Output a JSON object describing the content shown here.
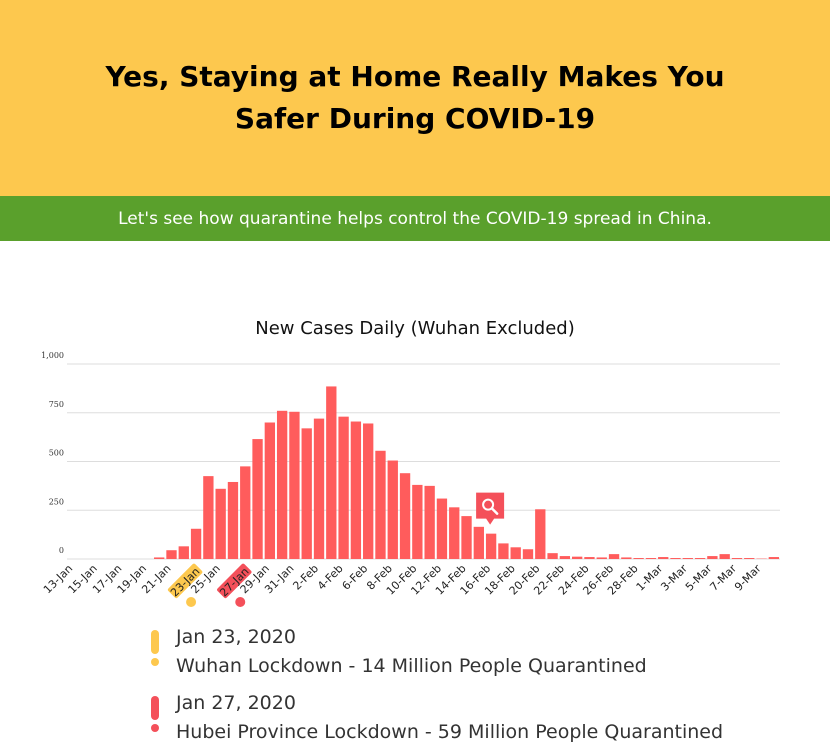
{
  "header": {
    "title": "Yes, Staying at Home Really Makes You Safer During COVID-19"
  },
  "subheader": {
    "text": "Let's see how quarantine helps control the COVID-19 spread in China."
  },
  "colors": {
    "header_bg": "#fdc84e",
    "subbar_bg": "#5aa02c",
    "bar": "#ff5c5c",
    "wuhan_marker": "#fdc84e",
    "hubei_marker": "#f4505a"
  },
  "chart_data": {
    "type": "bar",
    "title": "New Cases Daily (Wuhan Excluded)",
    "xlabel": "",
    "ylabel": "",
    "ylim": [
      0,
      1000
    ],
    "yticks": [
      0,
      250,
      500,
      750,
      1000
    ],
    "ytick_labels": [
      "0",
      "250",
      "500",
      "750",
      "1,000"
    ],
    "grid": true,
    "categories": [
      "13-Jan",
      "14-Jan",
      "15-Jan",
      "16-Jan",
      "17-Jan",
      "18-Jan",
      "19-Jan",
      "20-Jan",
      "21-Jan",
      "22-Jan",
      "23-Jan",
      "24-Jan",
      "25-Jan",
      "26-Jan",
      "27-Jan",
      "28-Jan",
      "29-Jan",
      "30-Jan",
      "31-Jan",
      "1-Feb",
      "2-Feb",
      "3-Feb",
      "4-Feb",
      "5-Feb",
      "6-Feb",
      "7-Feb",
      "8-Feb",
      "9-Feb",
      "10-Feb",
      "11-Feb",
      "12-Feb",
      "13-Feb",
      "14-Feb",
      "15-Feb",
      "16-Feb",
      "17-Feb",
      "18-Feb",
      "19-Feb",
      "20-Feb",
      "21-Feb",
      "22-Feb",
      "23-Feb",
      "24-Feb",
      "25-Feb",
      "26-Feb",
      "27-Feb",
      "28-Feb",
      "29-Feb",
      "1-Mar",
      "2-Mar",
      "3-Mar",
      "4-Mar",
      "5-Mar",
      "6-Mar",
      "7-Mar",
      "8-Mar",
      "9-Mar",
      "10-Mar"
    ],
    "values": [
      0,
      0,
      0,
      0,
      0,
      0,
      0,
      8,
      45,
      65,
      155,
      425,
      360,
      395,
      475,
      615,
      700,
      760,
      755,
      670,
      720,
      885,
      730,
      705,
      695,
      555,
      505,
      440,
      380,
      375,
      310,
      265,
      220,
      165,
      130,
      80,
      60,
      50,
      255,
      30,
      15,
      12,
      10,
      8,
      25,
      8,
      5,
      5,
      10,
      5,
      5,
      5,
      15,
      25,
      5,
      5,
      2,
      10
    ],
    "tick_labels": [
      "13-Jan",
      "15-Jan",
      "17-Jan",
      "19-Jan",
      "21-Jan",
      "23-Jan",
      "25-Jan",
      "27-Jan",
      "29-Jan",
      "31-Jan",
      "2-Feb",
      "4-Feb",
      "6-Feb",
      "8-Feb",
      "10-Feb",
      "12-Feb",
      "14-Feb",
      "16-Feb",
      "18-Feb",
      "20-Feb",
      "22-Feb",
      "24-Feb",
      "26-Feb",
      "28-Feb",
      "1-Mar",
      "3-Mar",
      "5-Mar",
      "7-Mar",
      "9-Mar"
    ],
    "highlights": [
      {
        "label": "23-Jan",
        "color": "#fdc84e"
      },
      {
        "label": "27-Jan",
        "color": "#f4505a"
      }
    ],
    "annotation": {
      "type": "zoom-icon",
      "category": "16-Feb"
    }
  },
  "events": [
    {
      "date": "Jan 23, 2020",
      "description": "Wuhan Lockdown - 14 Million People Quarantined",
      "color": "#fdc84e"
    },
    {
      "date": "Jan 27, 2020",
      "description": "Hubei Province Lockdown - 59 Million People Quarantined",
      "color": "#f4505a"
    }
  ]
}
